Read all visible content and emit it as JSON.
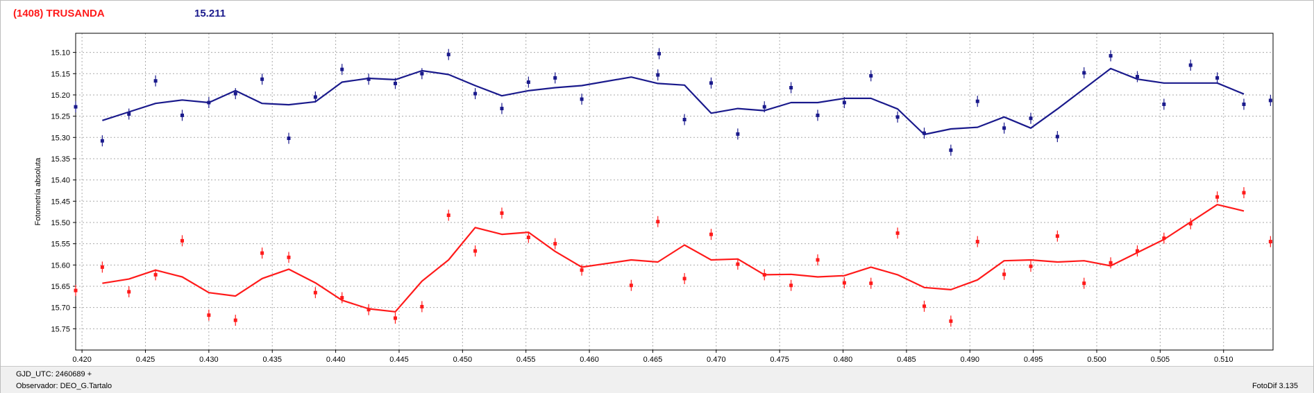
{
  "header": {
    "object": "(1408) TRUSANDA",
    "magnitude": "15.211"
  },
  "footer": {
    "gjd": "GJD_UTC: 2460689 +",
    "observer": "Observador: DEO_G.Tartalo",
    "version": "FotoDif 3.135"
  },
  "colors": {
    "upper_series": "#1a1a8c",
    "lower_series": "#ff1a1a",
    "grid": "#aaaaaa"
  },
  "chart_data": {
    "type": "scatter",
    "title": "",
    "xlabel": "",
    "ylabel": "Fotometría absoluta",
    "xlim": [
      0.4195,
      0.5139
    ],
    "ylim": [
      15.055,
      15.8
    ],
    "y_inverted": true,
    "grid": true,
    "x_ticks": [
      "0.420",
      "0.425",
      "0.430",
      "0.435",
      "0.440",
      "0.445",
      "0.450",
      "0.455",
      "0.460",
      "0.465",
      "0.470",
      "0.475",
      "0.480",
      "0.485",
      "0.490",
      "0.495",
      "0.500",
      "0.505",
      "0.510"
    ],
    "y_ticks": [
      "15.10",
      "15.15",
      "15.20",
      "15.25",
      "15.30",
      "15.35",
      "15.40",
      "15.45",
      "15.50",
      "15.55",
      "15.60",
      "15.65",
      "15.70",
      "15.75"
    ],
    "series": [
      {
        "color": "#1a1a8c",
        "points": [
          [
            0.4195,
            15.228
          ],
          [
            0.4216,
            15.308
          ],
          [
            0.4237,
            15.245
          ],
          [
            0.4258,
            15.167
          ],
          [
            0.4279,
            15.248
          ],
          [
            0.43,
            15.218
          ],
          [
            0.4321,
            15.197
          ],
          [
            0.4342,
            15.163
          ],
          [
            0.4363,
            15.302
          ],
          [
            0.4384,
            15.205
          ],
          [
            0.4405,
            15.14
          ],
          [
            0.4426,
            15.163
          ],
          [
            0.4447,
            15.173
          ],
          [
            0.4468,
            15.15
          ],
          [
            0.4489,
            15.105
          ],
          [
            0.451,
            15.197
          ],
          [
            0.4531,
            15.232
          ],
          [
            0.4552,
            15.17
          ],
          [
            0.4573,
            15.16
          ],
          [
            0.4594,
            15.21
          ],
          [
            0.4654,
            15.153
          ],
          [
            0.4655,
            15.103
          ],
          [
            0.4675,
            15.258
          ],
          [
            0.4696,
            15.172
          ],
          [
            0.4717,
            15.292
          ],
          [
            0.4738,
            15.228
          ],
          [
            0.4759,
            15.183
          ],
          [
            0.478,
            15.248
          ],
          [
            0.4801,
            15.218
          ],
          [
            0.4822,
            15.155
          ],
          [
            0.4843,
            15.252
          ],
          [
            0.4864,
            15.29
          ],
          [
            0.4885,
            15.33
          ],
          [
            0.4906,
            15.215
          ],
          [
            0.4927,
            15.278
          ],
          [
            0.4948,
            15.255
          ],
          [
            0.4969,
            15.298
          ],
          [
            0.499,
            15.148
          ],
          [
            0.5011,
            15.108
          ],
          [
            0.5032,
            15.157
          ],
          [
            0.5053,
            15.222
          ],
          [
            0.5074,
            15.13
          ],
          [
            0.5095,
            15.16
          ],
          [
            0.5116,
            15.222
          ],
          [
            0.5137,
            15.213
          ]
        ],
        "line": [
          [
            0.4216,
            15.26
          ],
          [
            0.4237,
            15.24
          ],
          [
            0.4258,
            15.22
          ],
          [
            0.4279,
            15.212
          ],
          [
            0.43,
            15.218
          ],
          [
            0.4321,
            15.19
          ],
          [
            0.4342,
            15.22
          ],
          [
            0.4363,
            15.223
          ],
          [
            0.4384,
            15.216
          ],
          [
            0.4405,
            15.17
          ],
          [
            0.4426,
            15.161
          ],
          [
            0.4447,
            15.164
          ],
          [
            0.4468,
            15.143
          ],
          [
            0.4489,
            15.152
          ],
          [
            0.451,
            15.178
          ],
          [
            0.4531,
            15.202
          ],
          [
            0.4552,
            15.19
          ],
          [
            0.4573,
            15.183
          ],
          [
            0.4594,
            15.178
          ],
          [
            0.4633,
            15.158
          ],
          [
            0.4654,
            15.173
          ],
          [
            0.4675,
            15.177
          ],
          [
            0.4696,
            15.243
          ],
          [
            0.4717,
            15.232
          ],
          [
            0.4738,
            15.237
          ],
          [
            0.4759,
            15.218
          ],
          [
            0.478,
            15.218
          ],
          [
            0.4801,
            15.208
          ],
          [
            0.4822,
            15.208
          ],
          [
            0.4843,
            15.233
          ],
          [
            0.4864,
            15.293
          ],
          [
            0.4885,
            15.28
          ],
          [
            0.4906,
            15.276
          ],
          [
            0.4927,
            15.252
          ],
          [
            0.4948,
            15.278
          ],
          [
            0.4969,
            15.233
          ],
          [
            0.5011,
            15.138
          ],
          [
            0.5032,
            15.163
          ],
          [
            0.5053,
            15.172
          ],
          [
            0.5095,
            15.172
          ],
          [
            0.5116,
            15.198
          ]
        ]
      },
      {
        "color": "#ff1a1a",
        "points": [
          [
            0.4195,
            15.66
          ],
          [
            0.4216,
            15.605
          ],
          [
            0.4237,
            15.663
          ],
          [
            0.4258,
            15.623
          ],
          [
            0.4279,
            15.543
          ],
          [
            0.43,
            15.718
          ],
          [
            0.4321,
            15.73
          ],
          [
            0.4342,
            15.572
          ],
          [
            0.4363,
            15.582
          ],
          [
            0.4384,
            15.665
          ],
          [
            0.4405,
            15.677
          ],
          [
            0.4426,
            15.705
          ],
          [
            0.4447,
            15.725
          ],
          [
            0.4468,
            15.698
          ],
          [
            0.4489,
            15.483
          ],
          [
            0.451,
            15.567
          ],
          [
            0.4531,
            15.478
          ],
          [
            0.4552,
            15.535
          ],
          [
            0.4573,
            15.55
          ],
          [
            0.4594,
            15.612
          ],
          [
            0.4633,
            15.648
          ],
          [
            0.4654,
            15.498
          ],
          [
            0.4675,
            15.632
          ],
          [
            0.4696,
            15.528
          ],
          [
            0.4717,
            15.598
          ],
          [
            0.4738,
            15.623
          ],
          [
            0.4759,
            15.648
          ],
          [
            0.478,
            15.588
          ],
          [
            0.4801,
            15.642
          ],
          [
            0.4822,
            15.643
          ],
          [
            0.4843,
            15.525
          ],
          [
            0.4864,
            15.697
          ],
          [
            0.4885,
            15.732
          ],
          [
            0.4906,
            15.545
          ],
          [
            0.4927,
            15.622
          ],
          [
            0.4948,
            15.603
          ],
          [
            0.4969,
            15.532
          ],
          [
            0.499,
            15.643
          ],
          [
            0.5011,
            15.595
          ],
          [
            0.5032,
            15.567
          ],
          [
            0.5053,
            15.537
          ],
          [
            0.5074,
            15.503
          ],
          [
            0.5095,
            15.44
          ],
          [
            0.5116,
            15.43
          ],
          [
            0.5137,
            15.545
          ]
        ],
        "line": [
          [
            0.4216,
            15.643
          ],
          [
            0.4237,
            15.633
          ],
          [
            0.4258,
            15.612
          ],
          [
            0.4279,
            15.628
          ],
          [
            0.43,
            15.665
          ],
          [
            0.4321,
            15.673
          ],
          [
            0.4342,
            15.632
          ],
          [
            0.4363,
            15.61
          ],
          [
            0.4384,
            15.642
          ],
          [
            0.4405,
            15.683
          ],
          [
            0.4426,
            15.703
          ],
          [
            0.4447,
            15.71
          ],
          [
            0.4468,
            15.638
          ],
          [
            0.4489,
            15.588
          ],
          [
            0.451,
            15.512
          ],
          [
            0.4531,
            15.528
          ],
          [
            0.4552,
            15.523
          ],
          [
            0.4573,
            15.568
          ],
          [
            0.4594,
            15.605
          ],
          [
            0.4633,
            15.588
          ],
          [
            0.4654,
            15.593
          ],
          [
            0.4675,
            15.553
          ],
          [
            0.4696,
            15.588
          ],
          [
            0.4717,
            15.586
          ],
          [
            0.4738,
            15.623
          ],
          [
            0.4759,
            15.622
          ],
          [
            0.478,
            15.628
          ],
          [
            0.4801,
            15.625
          ],
          [
            0.4822,
            15.605
          ],
          [
            0.4843,
            15.623
          ],
          [
            0.4864,
            15.653
          ],
          [
            0.4885,
            15.658
          ],
          [
            0.4906,
            15.635
          ],
          [
            0.4927,
            15.59
          ],
          [
            0.4948,
            15.588
          ],
          [
            0.4969,
            15.593
          ],
          [
            0.499,
            15.59
          ],
          [
            0.5011,
            15.602
          ],
          [
            0.5053,
            15.54
          ],
          [
            0.5095,
            15.458
          ],
          [
            0.5116,
            15.473
          ]
        ]
      }
    ]
  }
}
